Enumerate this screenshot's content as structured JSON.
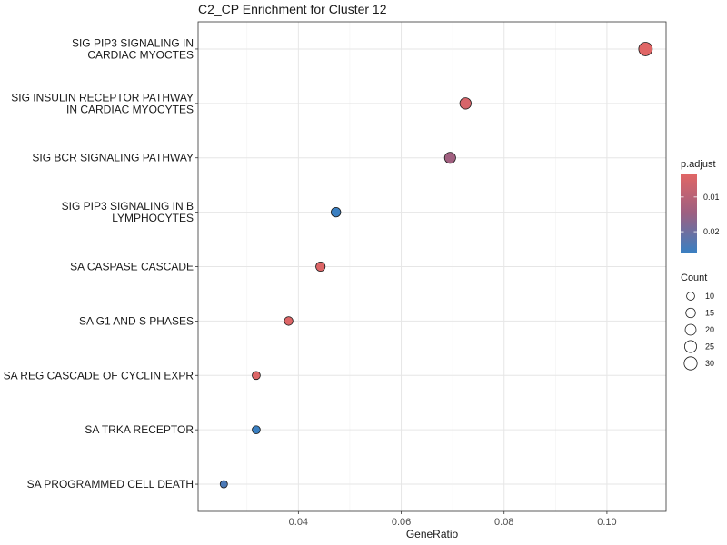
{
  "chart_data": {
    "type": "scatter",
    "title": "C2_CP Enrichment for Cluster 12",
    "xlabel": "GeneRatio",
    "ylabel": "",
    "xlim": [
      0.0205,
      0.1115
    ],
    "x_ticks": [
      0.04,
      0.06,
      0.08,
      0.1
    ],
    "x_tick_labels": [
      "0.04",
      "0.06",
      "0.08",
      "0.10"
    ],
    "grid": true,
    "categories": [
      [
        "SIG PIP3 SIGNALING IN",
        "CARDIAC MYOCTES"
      ],
      [
        "SIG INSULIN RECEPTOR PATHWAY",
        "IN CARDIAC MYOCYTES"
      ],
      [
        "SIG BCR SIGNALING PATHWAY"
      ],
      [
        "SIG PIP3 SIGNALING IN B",
        "LYMPHOCYTES"
      ],
      [
        "SA CASPASE CASCADE"
      ],
      [
        "SA G1 AND S PHASES"
      ],
      [
        "SA REG CASCADE OF CYCLIN EXPR"
      ],
      [
        "SA TRKA RECEPTOR"
      ],
      [
        "SA PROGRAMMED CELL DEATH"
      ]
    ],
    "points": [
      {
        "x": 0.1075,
        "count": 33,
        "p_adjust": 0.0035
      },
      {
        "x": 0.0725,
        "count": 22,
        "p_adjust": 0.005
      },
      {
        "x": 0.0695,
        "count": 21,
        "p_adjust": 0.014
      },
      {
        "x": 0.0473,
        "count": 15,
        "p_adjust": 0.026
      },
      {
        "x": 0.0443,
        "count": 14,
        "p_adjust": 0.004
      },
      {
        "x": 0.0381,
        "count": 12,
        "p_adjust": 0.004
      },
      {
        "x": 0.0318,
        "count": 10,
        "p_adjust": 0.004
      },
      {
        "x": 0.0318,
        "count": 10,
        "p_adjust": 0.026
      },
      {
        "x": 0.0255,
        "count": 8,
        "p_adjust": 0.024
      }
    ],
    "legend_color": {
      "title": "p.adjust",
      "placement": "right",
      "ticks": [
        0.01,
        0.02
      ],
      "tick_labels": [
        "0.01",
        "0.02"
      ],
      "domain": [
        0.0035,
        0.026
      ],
      "low_color": "#e06666",
      "mid_color": "#9c6082",
      "high_color": "#3a7fc1"
    },
    "legend_size": {
      "title": "Count",
      "placement": "right",
      "values": [
        10,
        15,
        20,
        25,
        30
      ],
      "labels": [
        "10",
        "15",
        "20",
        "25",
        "30"
      ]
    }
  }
}
